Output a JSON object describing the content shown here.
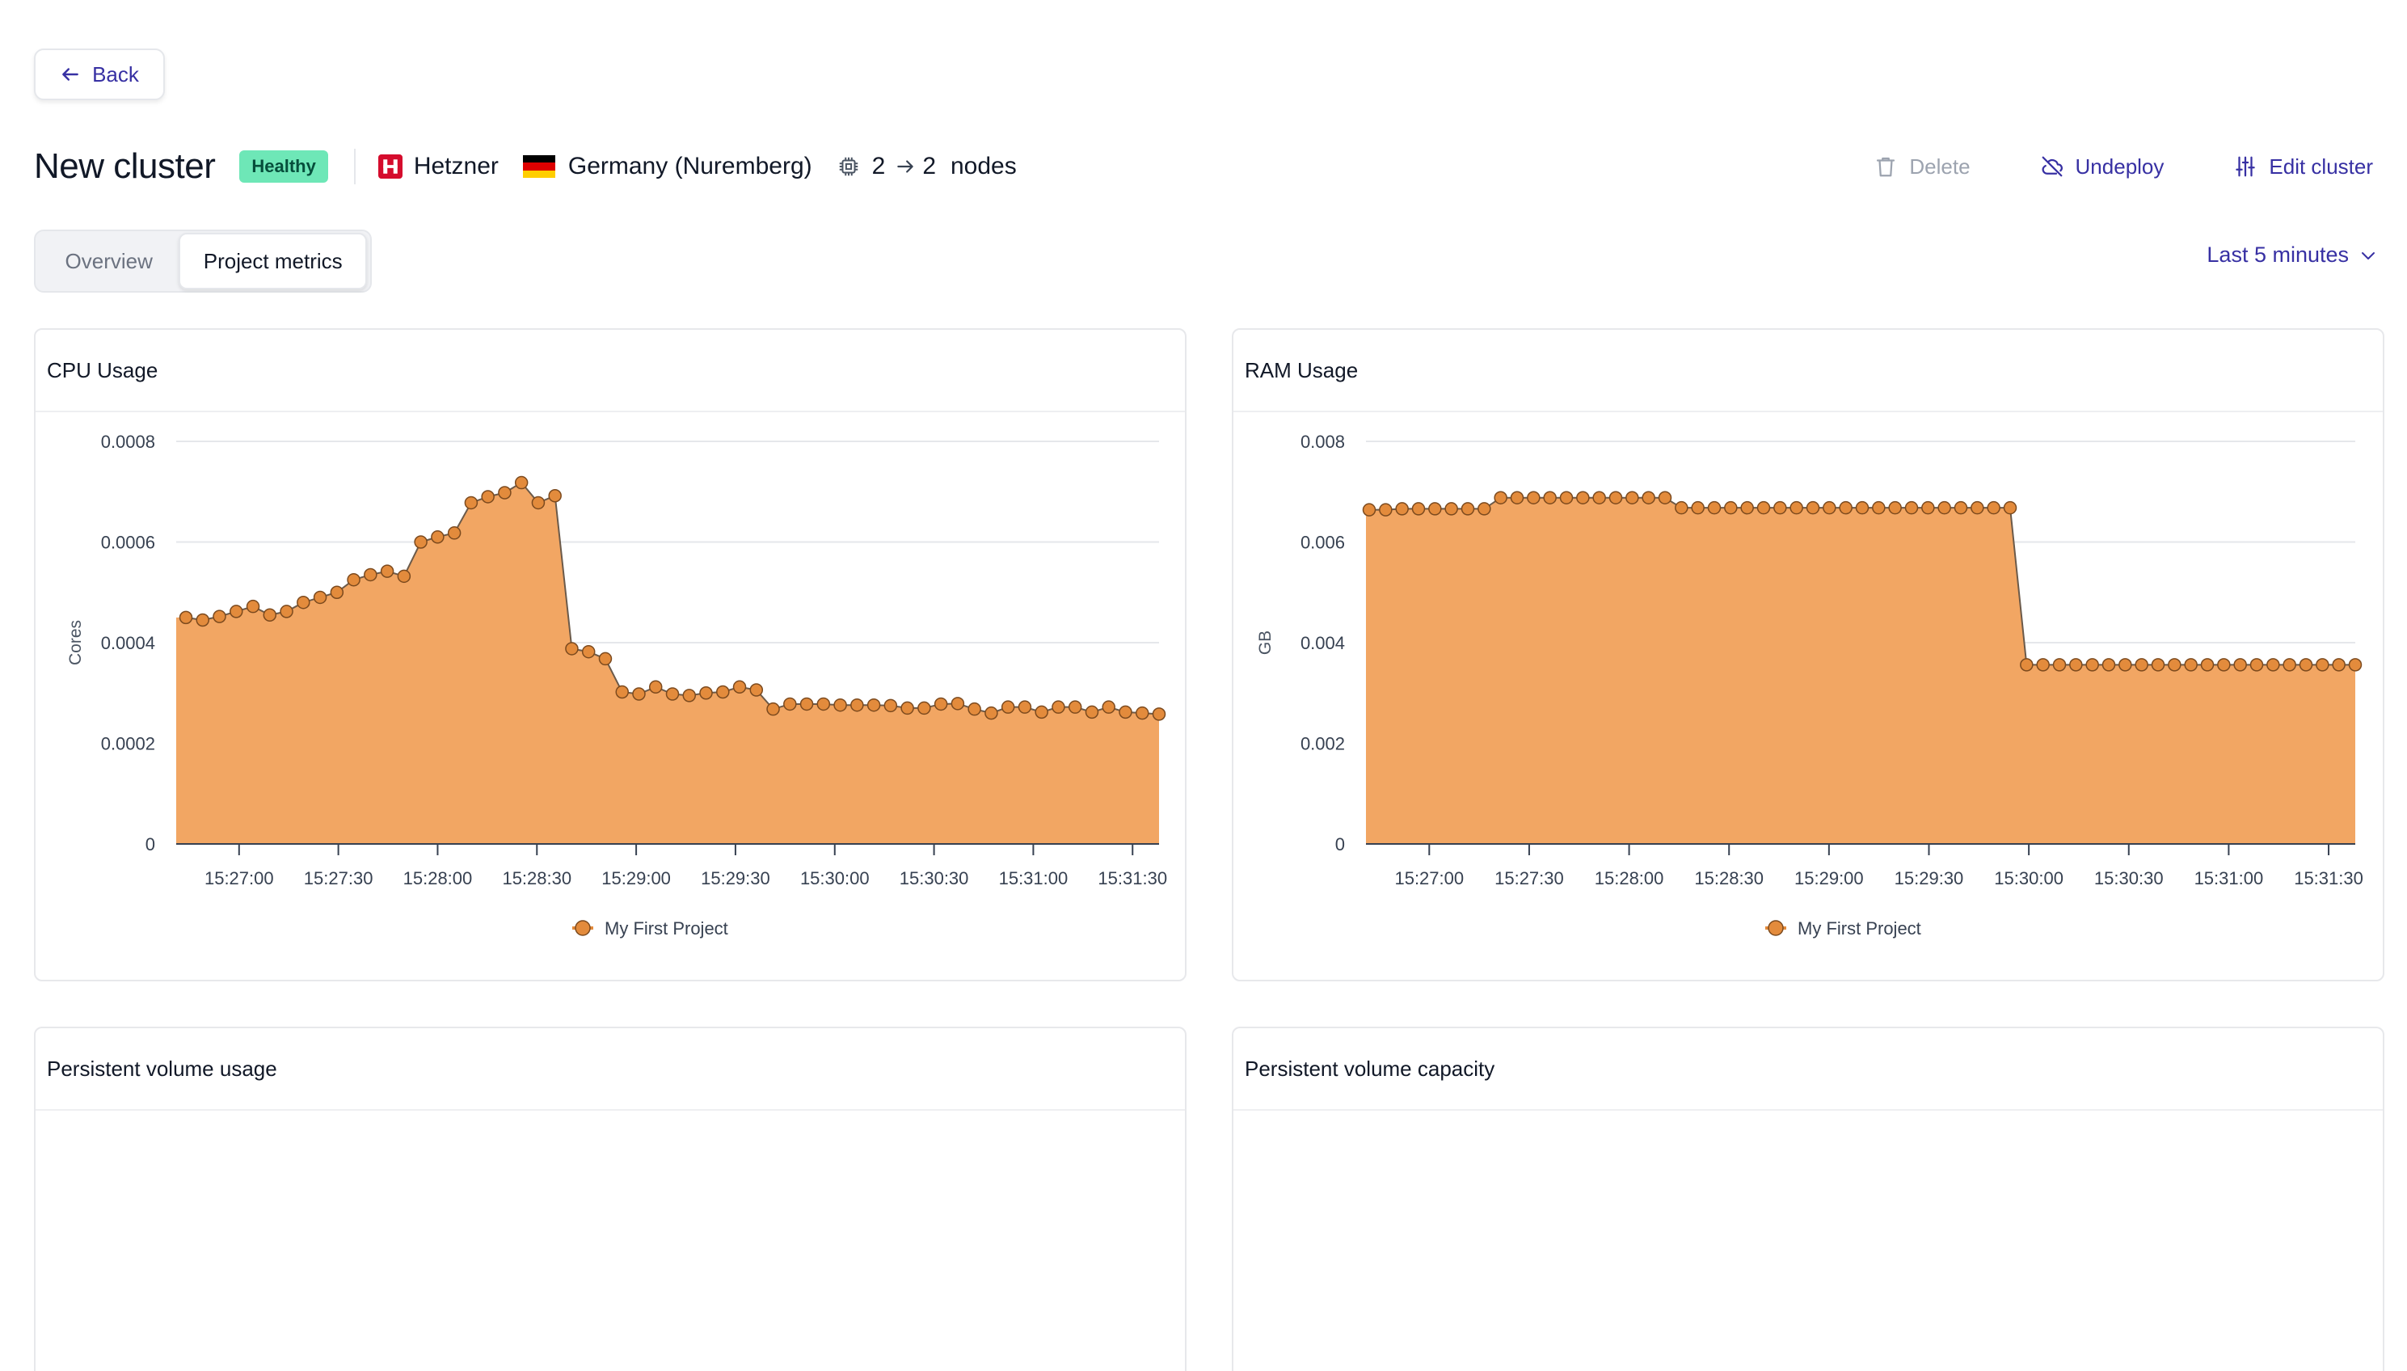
{
  "back_label": "Back",
  "header": {
    "title": "New cluster",
    "status": "Healthy",
    "provider": "Hetzner",
    "region": "Germany (Nuremberg)",
    "nodes_from": "2",
    "nodes_to": "2",
    "nodes_word": "nodes"
  },
  "actions": {
    "delete": "Delete",
    "undeploy": "Undeploy",
    "edit": "Edit cluster"
  },
  "tabs": {
    "overview": "Overview",
    "project_metrics": "Project metrics"
  },
  "time_range": "Last 5 minutes",
  "colors": {
    "accent": "#3730a3",
    "series_fill": "#f2a663",
    "series_point": "#e38b3c",
    "healthy": "#6ee7b7"
  },
  "cards": {
    "cpu": {
      "title": "CPU Usage"
    },
    "ram": {
      "title": "RAM Usage"
    },
    "pv_usage": {
      "title": "Persistent volume usage"
    },
    "pv_capacity": {
      "title": "Persistent volume capacity"
    }
  },
  "chart_data": [
    {
      "type": "area",
      "title": "CPU Usage",
      "ylabel": "Cores",
      "ylim": [
        0,
        0.0008
      ],
      "yticks": [
        0,
        0.0002,
        0.0004,
        0.0006,
        0.0008
      ],
      "ytick_labels": [
        "0",
        "0.0002",
        "0.0004",
        "0.0006",
        "0.0008"
      ],
      "xlim": [
        "15:26:41",
        "15:31:38"
      ],
      "xticks": [
        "15:27:00",
        "15:27:30",
        "15:28:00",
        "15:28:30",
        "15:29:00",
        "15:29:30",
        "15:30:00",
        "15:30:30",
        "15:31:00",
        "15:31:30"
      ],
      "legend": "bottom",
      "grid": true,
      "series": [
        {
          "name": "My First Project",
          "values": [
            0.00045,
            0.000445,
            0.000452,
            0.000462,
            0.000472,
            0.000455,
            0.000462,
            0.00048,
            0.00049,
            0.0005,
            0.000525,
            0.000535,
            0.000542,
            0.000532,
            0.0006,
            0.00061,
            0.000618,
            0.000678,
            0.00069,
            0.000698,
            0.000718,
            0.000678,
            0.000692,
            0.000388,
            0.000382,
            0.000368,
            0.000302,
            0.000298,
            0.000312,
            0.000298,
            0.000295,
            0.0003,
            0.000302,
            0.000312,
            0.000306,
            0.000268,
            0.000278,
            0.000278,
            0.000278,
            0.000276,
            0.000276,
            0.000276,
            0.000275,
            0.00027,
            0.00027,
            0.000278,
            0.000279,
            0.000268,
            0.00026,
            0.000272,
            0.000272,
            0.000262,
            0.000272,
            0.000272,
            0.000262,
            0.000272,
            0.000262,
            0.00026,
            0.000258
          ]
        }
      ]
    },
    {
      "type": "area",
      "title": "RAM Usage",
      "ylabel": "GB",
      "ylim": [
        0,
        0.008
      ],
      "yticks": [
        0,
        0.002,
        0.004,
        0.006,
        0.008
      ],
      "ytick_labels": [
        "0",
        "0.002",
        "0.004",
        "0.006",
        "0.008"
      ],
      "xlim": [
        "15:26:41",
        "15:31:38"
      ],
      "xticks": [
        "15:27:00",
        "15:27:30",
        "15:28:00",
        "15:28:30",
        "15:29:00",
        "15:29:30",
        "15:30:00",
        "15:30:30",
        "15:31:00",
        "15:31:30"
      ],
      "legend": "bottom",
      "grid": true,
      "series": [
        {
          "name": "My First Project",
          "values": [
            0.00664,
            0.00664,
            0.00666,
            0.00666,
            0.00666,
            0.00666,
            0.00666,
            0.00666,
            0.00688,
            0.00688,
            0.00688,
            0.00688,
            0.00688,
            0.00688,
            0.00688,
            0.00688,
            0.00688,
            0.00688,
            0.00688,
            0.00668,
            0.00668,
            0.00668,
            0.00668,
            0.00668,
            0.00668,
            0.00668,
            0.00668,
            0.00668,
            0.00668,
            0.00668,
            0.00668,
            0.00668,
            0.00668,
            0.00668,
            0.00668,
            0.00668,
            0.00668,
            0.00668,
            0.00668,
            0.00668,
            0.00356,
            0.00356,
            0.00356,
            0.00356,
            0.00356,
            0.00356,
            0.00356,
            0.00356,
            0.00356,
            0.00356,
            0.00356,
            0.00356,
            0.00356,
            0.00356,
            0.00356,
            0.00356,
            0.00356,
            0.00356,
            0.00356,
            0.00356,
            0.00356
          ]
        }
      ]
    }
  ]
}
